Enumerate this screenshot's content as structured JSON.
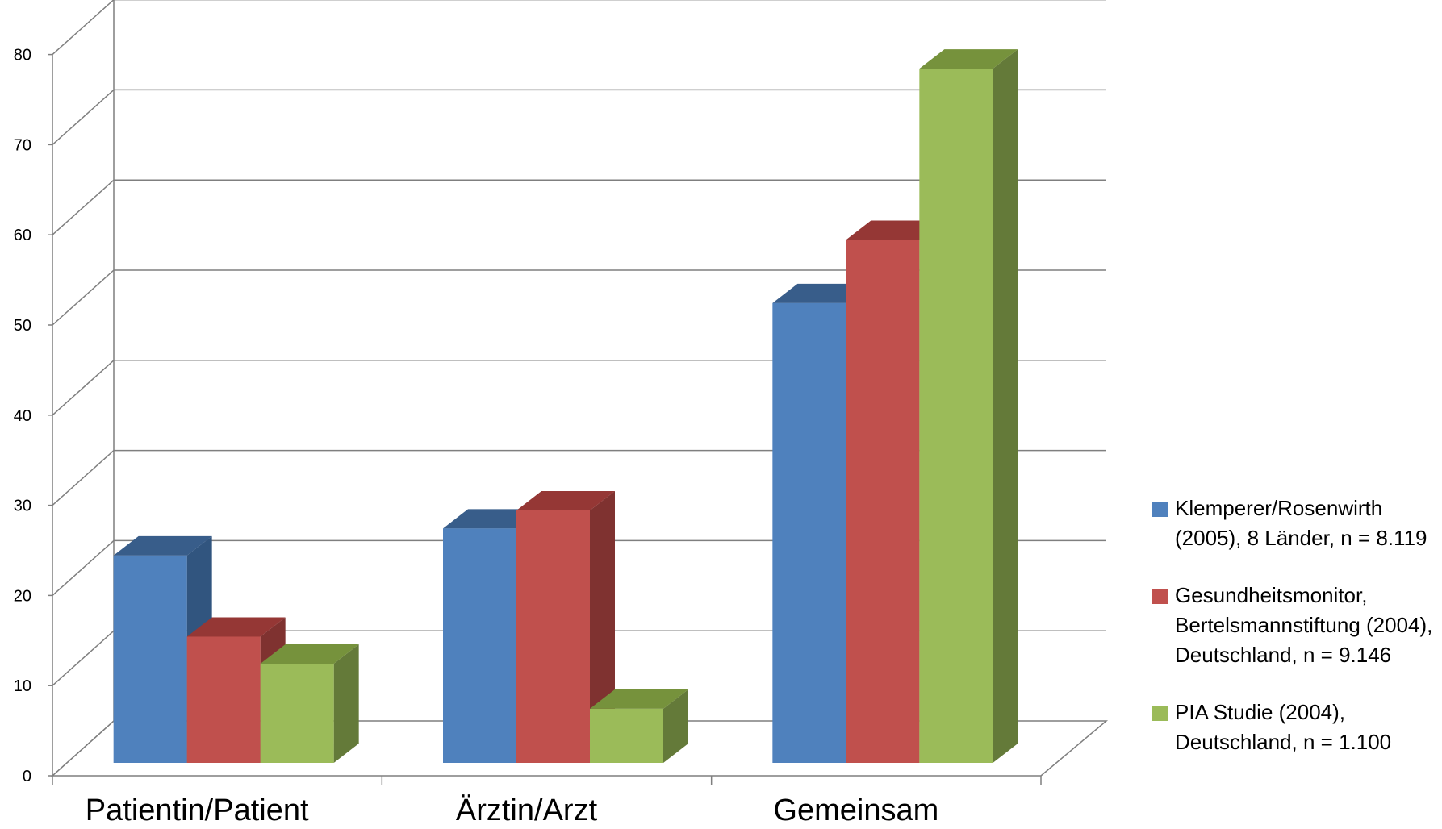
{
  "chart_data": {
    "type": "bar",
    "categories": [
      "Patientin/Patient",
      "Ärztin/Arzt",
      "Gemeinsam"
    ],
    "series": [
      {
        "name": "Klemperer/Rosenwirth (2005), 8 Länder, n = 8.119",
        "values": [
          23,
          26,
          51
        ],
        "color": "#4f81bd",
        "side": "#31557f",
        "top": "#385d8a"
      },
      {
        "name": "Gesundheitsmonitor, Bertelsmannstiftung (2004), Deutschland, n = 9.146",
        "values": [
          14,
          28,
          58
        ],
        "color": "#c0504d",
        "side": "#7f3230",
        "top": "#953735"
      },
      {
        "name": "PIA Studie (2004), Deutschland, n = 1.100",
        "values": [
          11,
          6,
          77
        ],
        "color": "#9bbb59",
        "side": "#647a39",
        "top": "#76923c"
      }
    ],
    "yticks": [
      "0",
      "10",
      "20",
      "30",
      "40",
      "50",
      "60",
      "70",
      "80"
    ],
    "ylim": [
      0,
      80
    ],
    "grid": true,
    "legend_position": "right",
    "legend_lines": [
      [
        "Klemperer/Rosenwirth",
        "(2005), 8 Länder, n = 8.119"
      ],
      [
        "Gesundheitsmonitor,",
        "Bertelsmannstiftung (2004),",
        "Deutschland, n = 9.146"
      ],
      [
        "PIA Studie (2004),",
        "Deutschland, n = 1.100"
      ]
    ]
  }
}
